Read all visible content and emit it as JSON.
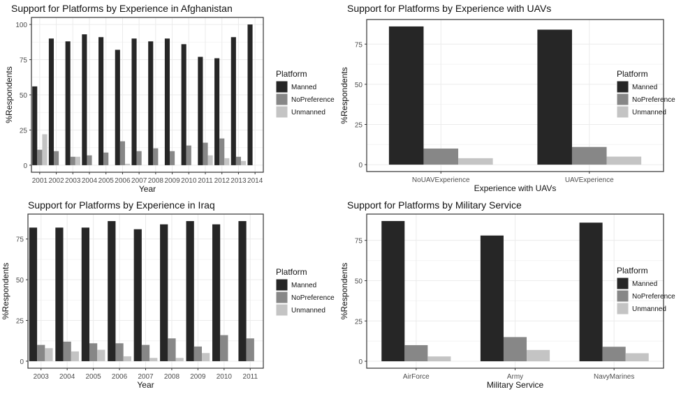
{
  "colors": {
    "Manned": "#262626",
    "NoPreference": "#878787",
    "Unmanned": "#c4c4c4"
  },
  "chart_data": [
    {
      "type": "bar",
      "title": "Support for Platforms by Experience in Afghanistan",
      "xlabel": "Year",
      "ylabel": "%Respondents",
      "categories": [
        "2001",
        "2002",
        "2003",
        "2004",
        "2005",
        "2006",
        "2007",
        "2008",
        "2009",
        "2010",
        "2011",
        "2012",
        "2013",
        "2014"
      ],
      "series": [
        {
          "name": "Manned",
          "values": [
            56,
            90,
            88,
            93,
            91,
            82,
            90,
            88,
            90,
            86,
            77,
            76,
            91,
            100
          ]
        },
        {
          "name": "NoPreference",
          "values": [
            11,
            10,
            6,
            7,
            9,
            17,
            10,
            12,
            10,
            14,
            16,
            19,
            6,
            0
          ]
        },
        {
          "name": "Unmanned",
          "values": [
            22,
            0,
            6,
            0,
            0,
            1,
            0,
            0,
            0,
            0,
            7,
            5,
            3,
            0
          ]
        }
      ],
      "yticks": [
        0,
        25,
        50,
        75,
        100
      ],
      "ylim": [
        -5,
        105
      ],
      "legend": {
        "title": "Platform",
        "placement": "right"
      },
      "grid": true
    },
    {
      "type": "bar",
      "title": "Support for Platforms by Experience with UAVs",
      "xlabel": "Experience with UAVs",
      "ylabel": "%Respondents",
      "categories": [
        "NoUAVExperience",
        "UAVExperience"
      ],
      "series": [
        {
          "name": "Manned",
          "values": [
            86,
            84
          ]
        },
        {
          "name": "NoPreference",
          "values": [
            10,
            11
          ]
        },
        {
          "name": "Unmanned",
          "values": [
            4,
            5
          ]
        }
      ],
      "yticks": [
        0,
        25,
        50,
        75
      ],
      "ylim": [
        -4.3,
        90.3
      ],
      "legend": {
        "title": "Platform",
        "placement": "right"
      },
      "grid": true
    },
    {
      "type": "bar",
      "title": "Support for Platforms by Experience in Iraq",
      "xlabel": "Year",
      "ylabel": "%Respondents",
      "categories": [
        "2003",
        "2004",
        "2005",
        "2006",
        "2007",
        "2008",
        "2009",
        "2010",
        "2011"
      ],
      "series": [
        {
          "name": "Manned",
          "values": [
            82,
            82,
            82,
            86,
            81,
            84,
            86,
            84,
            86
          ]
        },
        {
          "name": "NoPreference",
          "values": [
            10,
            12,
            11,
            11,
            10,
            14,
            9,
            16,
            14
          ]
        },
        {
          "name": "Unmanned",
          "values": [
            8,
            6,
            7,
            3,
            2,
            2,
            5,
            0,
            0
          ]
        }
      ],
      "yticks": [
        0,
        25,
        50,
        75
      ],
      "ylim": [
        -4.3,
        90.3
      ],
      "legend": {
        "title": "Platform",
        "placement": "right"
      },
      "grid": true
    },
    {
      "type": "bar",
      "title": "Support for Platforms by Military Service",
      "xlabel": "Military Service",
      "ylabel": "%Respondents",
      "categories": [
        "AirForce",
        "Army",
        "NavyMarines"
      ],
      "series": [
        {
          "name": "Manned",
          "values": [
            87,
            78,
            86
          ]
        },
        {
          "name": "NoPreference",
          "values": [
            10,
            15,
            9
          ]
        },
        {
          "name": "Unmanned",
          "values": [
            3,
            7,
            5
          ]
        }
      ],
      "yticks": [
        0,
        25,
        50,
        75
      ],
      "ylim": [
        -4.3,
        91.3
      ],
      "legend": {
        "title": "Platform",
        "placement": "right"
      },
      "grid": true
    }
  ]
}
